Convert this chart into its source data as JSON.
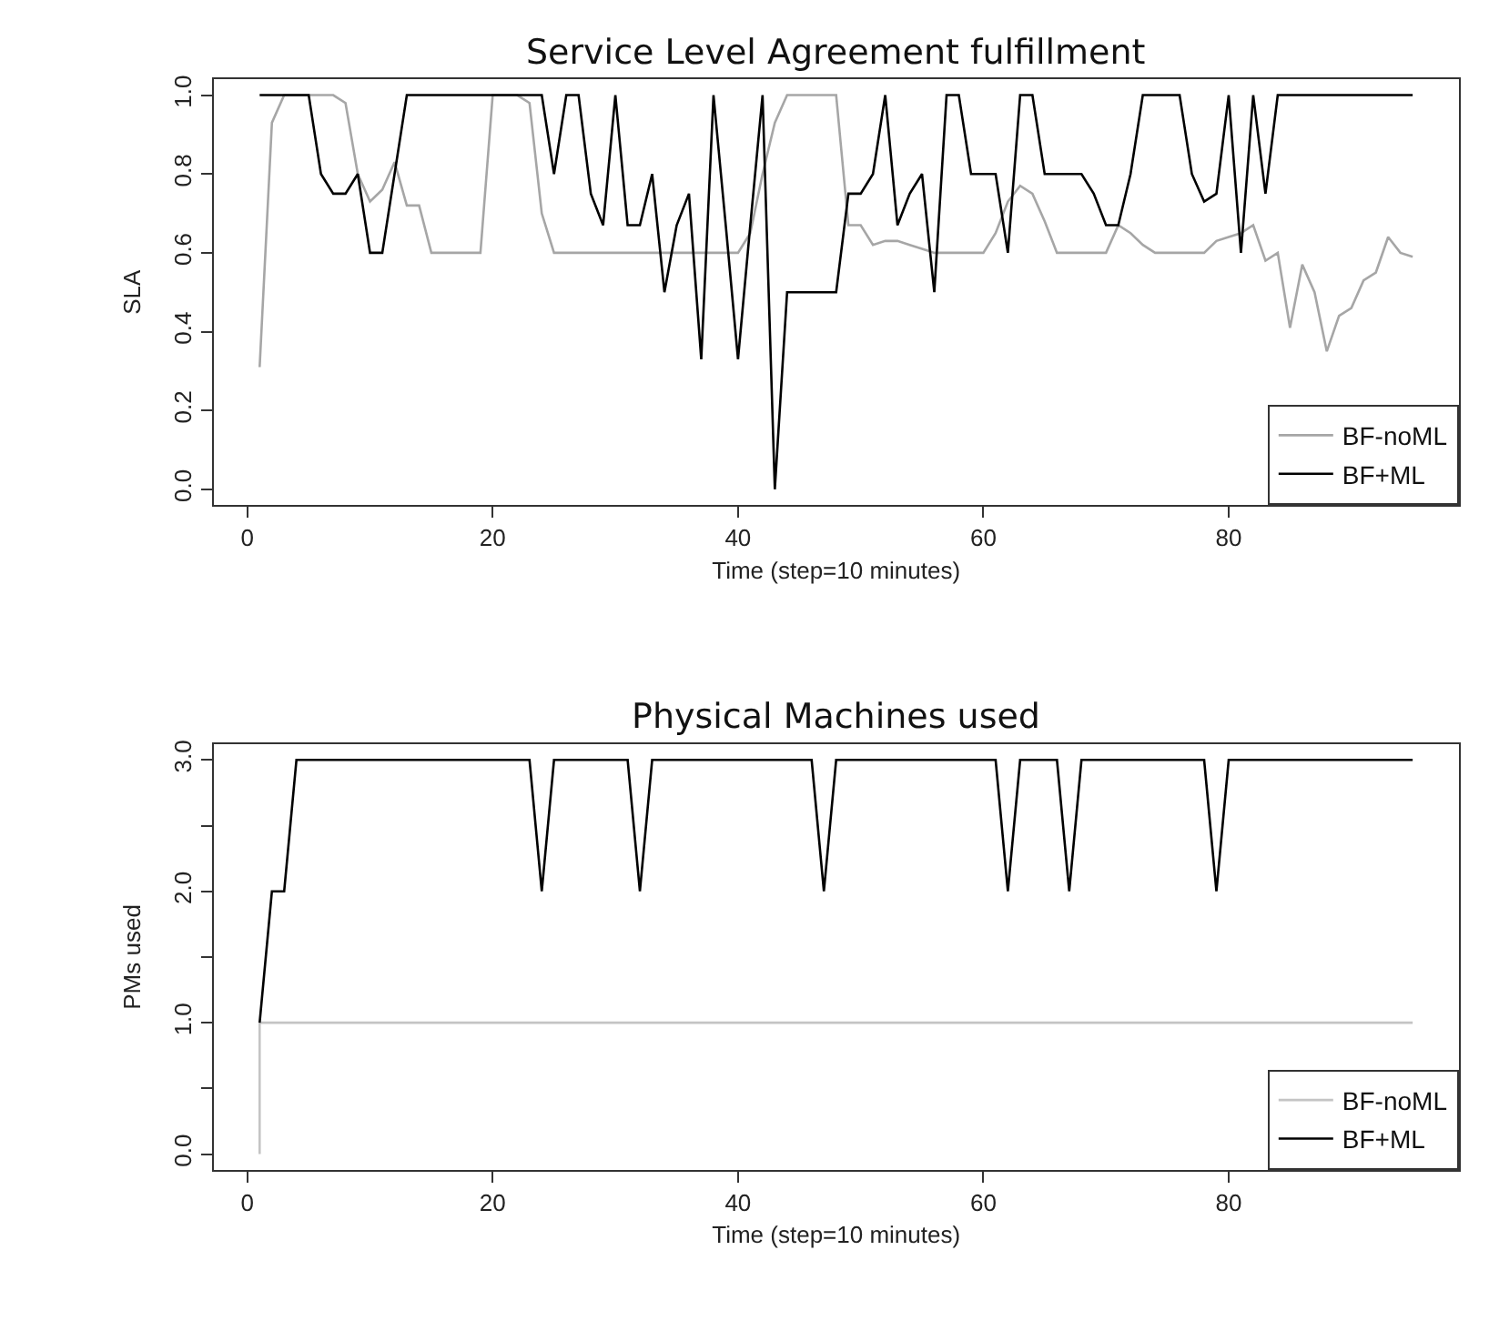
{
  "chart_data": [
    {
      "type": "line",
      "title": "Service Level Agreement fulfillment",
      "xlabel": "Time (step=10 minutes)",
      "ylabel": "SLA",
      "x": [
        1,
        2,
        3,
        4,
        5,
        6,
        7,
        8,
        9,
        10,
        11,
        12,
        13,
        14,
        15,
        16,
        17,
        18,
        19,
        20,
        21,
        22,
        23,
        24,
        25,
        26,
        27,
        28,
        29,
        30,
        31,
        32,
        33,
        34,
        35,
        36,
        37,
        38,
        39,
        40,
        41,
        42,
        43,
        44,
        45,
        46,
        47,
        48,
        49,
        50,
        51,
        52,
        53,
        54,
        55,
        56,
        57,
        58,
        59,
        60,
        61,
        62,
        63,
        64,
        65,
        66,
        67,
        68,
        69,
        70,
        71,
        72,
        73,
        74,
        75,
        76,
        77,
        78,
        79,
        80,
        81,
        82,
        83,
        84,
        85,
        86,
        87,
        88,
        89,
        90,
        91,
        92,
        93,
        94,
        95
      ],
      "series": [
        {
          "name": "BF-noML",
          "color": "#a6a6a6",
          "values": [
            0.31,
            0.93,
            1,
            1,
            1,
            1,
            1,
            0.98,
            0.8,
            0.73,
            0.76,
            0.83,
            0.72,
            0.72,
            0.6,
            0.6,
            0.6,
            0.6,
            0.6,
            1,
            1,
            1,
            0.98,
            0.7,
            0.6,
            0.6,
            0.6,
            0.6,
            0.6,
            0.6,
            0.6,
            0.6,
            0.6,
            0.6,
            0.6,
            0.6,
            0.6,
            0.6,
            0.6,
            0.6,
            0.65,
            0.8,
            0.93,
            1,
            1,
            1,
            1,
            1,
            0.67,
            0.67,
            0.62,
            0.63,
            0.63,
            0.62,
            0.61,
            0.6,
            0.6,
            0.6,
            0.6,
            0.6,
            0.65,
            0.73,
            0.77,
            0.75,
            0.68,
            0.6,
            0.6,
            0.6,
            0.6,
            0.6,
            0.67,
            0.65,
            0.62,
            0.6,
            0.6,
            0.6,
            0.6,
            0.6,
            0.63,
            0.64,
            0.65,
            0.67,
            0.58,
            0.6,
            0.41,
            0.57,
            0.5,
            0.35,
            0.44,
            0.46,
            0.53,
            0.55,
            0.64,
            0.6,
            0.59
          ]
        },
        {
          "name": "BF+ML",
          "color": "#000000",
          "values": [
            1,
            1,
            1,
            1,
            1,
            0.8,
            0.75,
            0.75,
            0.8,
            0.6,
            0.6,
            0.8,
            1,
            1,
            1,
            1,
            1,
            1,
            1,
            1,
            1,
            1,
            1,
            1,
            0.8,
            1,
            1,
            0.75,
            0.67,
            1,
            0.67,
            0.67,
            0.8,
            0.5,
            0.67,
            0.75,
            0.33,
            1,
            0.67,
            0.33,
            0.67,
            1,
            0,
            0.5,
            0.5,
            0.5,
            0.5,
            0.5,
            0.75,
            0.75,
            0.8,
            1,
            0.67,
            0.75,
            0.8,
            0.5,
            1,
            1,
            0.8,
            0.8,
            0.8,
            0.6,
            1,
            1,
            0.8,
            0.8,
            0.8,
            0.8,
            0.75,
            0.67,
            0.67,
            0.8,
            1,
            1,
            1,
            1,
            0.8,
            0.73,
            0.75,
            1,
            0.6,
            1,
            0.75,
            1,
            1,
            1,
            1,
            1,
            1,
            1,
            1,
            1,
            1,
            1,
            1
          ]
        }
      ],
      "xlim": [
        -2.76,
        98.76
      ],
      "xticks": [
        0,
        20,
        40,
        60,
        80
      ],
      "ylim": [
        -0.04,
        1.04
      ],
      "yticks": [
        {
          "value": 0,
          "label": "0.0"
        },
        {
          "value": 0.2,
          "label": "0.2"
        },
        {
          "value": 0.4,
          "label": "0.4"
        },
        {
          "value": 0.6,
          "label": "0.6"
        },
        {
          "value": 0.8,
          "label": "0.8"
        },
        {
          "value": 1,
          "label": "1.0"
        }
      ],
      "legend": "bottom right",
      "marker": "none",
      "line_style": "solid"
    },
    {
      "type": "line",
      "title": "Physical Machines used",
      "xlabel": "Time (step=10 minutes)",
      "ylabel": "PMs used",
      "series": [
        {
          "name": "BF-noML",
          "color": "#c4c4c4",
          "x": [
            1,
            1,
            95
          ],
          "values": [
            0,
            1,
            1
          ]
        },
        {
          "name": "BF+ML",
          "color": "#000000",
          "x": [
            1,
            2,
            3,
            4,
            23,
            24,
            25,
            31,
            32,
            33,
            46,
            47,
            48,
            61,
            62,
            63,
            66,
            67,
            68,
            78,
            79,
            80,
            95
          ],
          "values": [
            1,
            2,
            2,
            3,
            3,
            2,
            3,
            3,
            2,
            3,
            3,
            2,
            3,
            3,
            2,
            3,
            3,
            2,
            3,
            3,
            2,
            3,
            3
          ]
        }
      ],
      "xlim": [
        -2.76,
        98.76
      ],
      "xticks": [
        0,
        20,
        40,
        60,
        80
      ],
      "ylim": [
        -0.12,
        3.12
      ],
      "yticks": [
        {
          "value": 0,
          "label": "0.0"
        },
        {
          "value": 0.5,
          "label": null
        },
        {
          "value": 1,
          "label": "1.0"
        },
        {
          "value": 1.5,
          "label": null
        },
        {
          "value": 2,
          "label": "2.0"
        },
        {
          "value": 2.5,
          "label": null
        },
        {
          "value": 3,
          "label": "3.0"
        }
      ],
      "legend": "bottom right",
      "marker": "none",
      "line_style": "solid"
    }
  ]
}
